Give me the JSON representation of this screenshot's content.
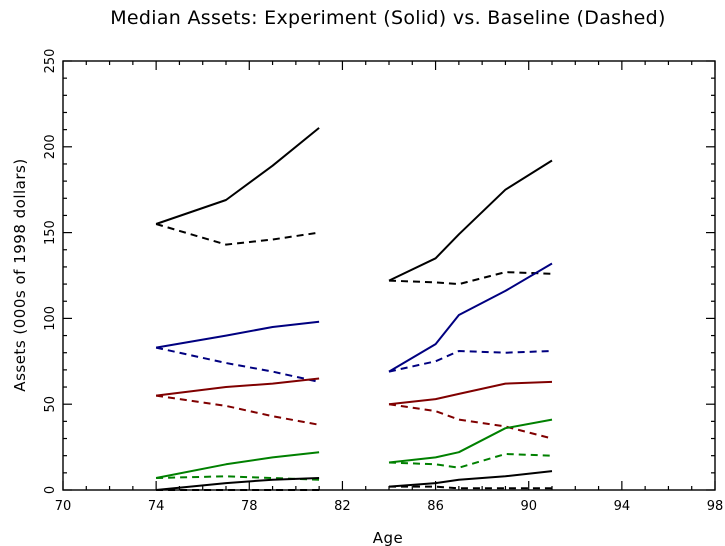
{
  "chart_data": {
    "type": "line",
    "title": "Median Assets:  Experiment (Solid) vs. Baseline (Dashed)",
    "xlabel": "Age",
    "ylabel": "Assets (000s of 1998 dollars)",
    "xlim": [
      70,
      98
    ],
    "ylim": [
      0,
      250
    ],
    "xticks": [
      70,
      74,
      78,
      82,
      86,
      90,
      94,
      98
    ],
    "yticks": [
      0,
      50,
      100,
      150,
      200,
      250
    ],
    "grid": false,
    "legend": "none",
    "series": [
      {
        "color": "#000000",
        "style": "solid",
        "x": [
          74,
          77,
          79,
          81
        ],
        "y": [
          155,
          169,
          189,
          211
        ]
      },
      {
        "color": "#000000",
        "style": "dashed",
        "x": [
          74,
          77,
          79,
          81
        ],
        "y": [
          155,
          143,
          146,
          150
        ]
      },
      {
        "color": "#000080",
        "style": "solid",
        "x": [
          74,
          77,
          79,
          81
        ],
        "y": [
          83,
          90,
          95,
          98
        ]
      },
      {
        "color": "#000080",
        "style": "dashed",
        "x": [
          74,
          77,
          79,
          81
        ],
        "y": [
          83,
          74,
          69,
          63
        ]
      },
      {
        "color": "#800000",
        "style": "solid",
        "x": [
          74,
          77,
          79,
          81
        ],
        "y": [
          55,
          60,
          62,
          65
        ]
      },
      {
        "color": "#800000",
        "style": "dashed",
        "x": [
          74,
          77,
          79,
          81
        ],
        "y": [
          55,
          49,
          43,
          38
        ]
      },
      {
        "color": "#008000",
        "style": "solid",
        "x": [
          74,
          77,
          79,
          81
        ],
        "y": [
          7,
          15,
          19,
          22
        ]
      },
      {
        "color": "#008000",
        "style": "dashed",
        "x": [
          74,
          77,
          79,
          81
        ],
        "y": [
          7,
          8,
          7,
          6
        ]
      },
      {
        "color": "#000000",
        "style": "solid",
        "x": [
          74,
          77,
          79,
          81
        ],
        "y": [
          0,
          4,
          6,
          7
        ]
      },
      {
        "color": "#000000",
        "style": "dashed",
        "x": [
          74,
          77,
          79,
          81
        ],
        "y": [
          0,
          0,
          0,
          0
        ]
      },
      {
        "color": "#000000",
        "style": "solid",
        "x": [
          84,
          86,
          87,
          89,
          91
        ],
        "y": [
          122,
          135,
          149,
          175,
          192
        ]
      },
      {
        "color": "#000000",
        "style": "dashed",
        "x": [
          84,
          86,
          87,
          89,
          91
        ],
        "y": [
          122,
          121,
          120,
          127,
          126
        ]
      },
      {
        "color": "#000080",
        "style": "solid",
        "x": [
          84,
          86,
          87,
          89,
          91
        ],
        "y": [
          69,
          85,
          102,
          116,
          132
        ]
      },
      {
        "color": "#000080",
        "style": "dashed",
        "x": [
          84,
          86,
          87,
          89,
          91
        ],
        "y": [
          69,
          75,
          81,
          80,
          81
        ]
      },
      {
        "color": "#800000",
        "style": "solid",
        "x": [
          84,
          86,
          87,
          89,
          91
        ],
        "y": [
          50,
          53,
          56,
          62,
          63
        ]
      },
      {
        "color": "#800000",
        "style": "dashed",
        "x": [
          84,
          86,
          87,
          89,
          91
        ],
        "y": [
          50,
          46,
          41,
          37,
          30
        ]
      },
      {
        "color": "#008000",
        "style": "solid",
        "x": [
          84,
          86,
          87,
          89,
          91
        ],
        "y": [
          16,
          19,
          22,
          36,
          41
        ]
      },
      {
        "color": "#008000",
        "style": "dashed",
        "x": [
          84,
          86,
          87,
          89,
          91
        ],
        "y": [
          16,
          15,
          13,
          21,
          20
        ]
      },
      {
        "color": "#000000",
        "style": "solid",
        "x": [
          84,
          86,
          87,
          89,
          91
        ],
        "y": [
          2,
          4,
          6,
          8,
          11
        ]
      },
      {
        "color": "#000000",
        "style": "dashed",
        "x": [
          84,
          86,
          87,
          89,
          91
        ],
        "y": [
          2,
          2,
          1,
          1,
          1
        ]
      }
    ]
  }
}
